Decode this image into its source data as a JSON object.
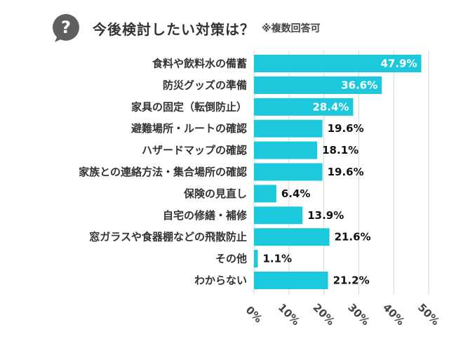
{
  "header": {
    "title": "今後検討したい対策は？",
    "note": "※複数回答可",
    "icon": "question-bubble-icon"
  },
  "colors": {
    "bar": "#1cc8dc",
    "icon": "#5f5f5f",
    "grid": "#d7d7d7",
    "label_inside": "#ffffff",
    "label_outside": "#111111"
  },
  "chart_data": {
    "type": "bar",
    "orientation": "horizontal",
    "categories": [
      "食料や飲料水の備蓄",
      "防災グッズの準備",
      "家具の固定（転倒防止）",
      "避難場所・ルートの確認",
      "ハザードマップの確認",
      "家族との連絡方法・集合場所の確認",
      "保険の見直し",
      "自宅の修繕・補修",
      "窓ガラスや食器棚などの飛散防止",
      "その他",
      "わからない"
    ],
    "values": [
      47.9,
      36.6,
      28.4,
      19.6,
      18.1,
      19.6,
      6.4,
      13.9,
      21.6,
      1.1,
      21.2
    ],
    "value_labels": [
      "47.9%",
      "36.6%",
      "28.4%",
      "19.6%",
      "18.1%",
      "19.6%",
      "6.4%",
      "13.9%",
      "21.6%",
      "1.1%",
      "21.2%"
    ],
    "xlim": [
      0,
      50
    ],
    "ticks": [
      0,
      10,
      20,
      30,
      40,
      50
    ],
    "tick_labels": [
      "0%",
      "10%",
      "20%",
      "30%",
      "40%",
      "50%"
    ],
    "grid": true,
    "legend": "none"
  }
}
